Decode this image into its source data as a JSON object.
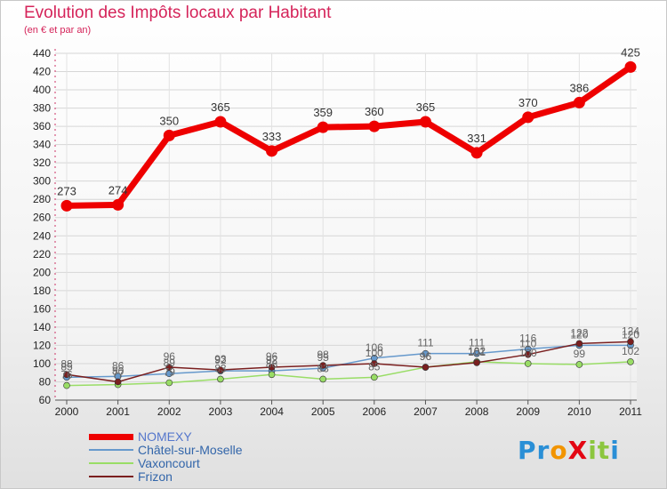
{
  "header": {
    "title": "Evolution des Impôts locaux par Habitant",
    "subtitle": "(en € et par an)"
  },
  "logo": {
    "text": "ProXiti",
    "letters": [
      {
        "ch": "P",
        "color": "#2a8fd6"
      },
      {
        "ch": "r",
        "color": "#2a8fd6"
      },
      {
        "ch": "o",
        "color": "#f29400"
      },
      {
        "ch": "X",
        "color": "#e30613"
      },
      {
        "ch": "i",
        "color": "#8cc63f"
      },
      {
        "ch": "t",
        "color": "#8cc63f"
      },
      {
        "ch": "i",
        "color": "#2a8fd6"
      }
    ]
  },
  "chart_data": {
    "type": "line",
    "title": "Evolution des Impôts locaux par Habitant",
    "subtitle": "(en € et par an)",
    "x": [
      "2000",
      "2001",
      "2002",
      "2003",
      "2004",
      "2005",
      "2006",
      "2007",
      "2008",
      "2009",
      "2010",
      "2011"
    ],
    "ylim": [
      60,
      440
    ],
    "yticks": [
      60,
      80,
      100,
      120,
      140,
      160,
      180,
      200,
      220,
      240,
      260,
      280,
      300,
      320,
      340,
      360,
      380,
      400,
      420,
      440
    ],
    "grid": true,
    "legend_position": "bottom-left",
    "series": [
      {
        "name": "NOMEXY",
        "color": "#ee0000",
        "values": [
          273,
          274,
          350,
          365,
          333,
          359,
          360,
          365,
          331,
          370,
          386,
          425
        ]
      },
      {
        "name": "Châtel-sur-Moselle",
        "color": "#6699cc",
        "values": [
          85,
          86,
          89,
          92,
          92,
          95,
          106,
          111,
          111,
          116,
          120,
          120
        ]
      },
      {
        "name": "Vaxoncourt",
        "color": "#99dd66",
        "values": [
          76,
          77,
          79,
          83,
          88,
          83,
          85,
          96,
          102,
          100,
          99,
          102
        ]
      },
      {
        "name": "Frizon",
        "color": "#7a1f1f",
        "values": [
          88,
          80,
          96,
          93,
          96,
          98,
          100,
          96,
          101,
          110,
          122,
          124
        ]
      }
    ]
  }
}
